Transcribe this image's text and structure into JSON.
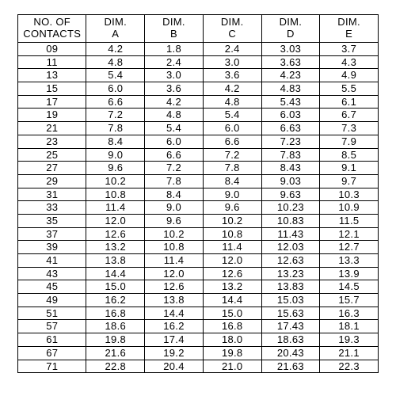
{
  "table": {
    "type": "table",
    "background_color": "#ffffff",
    "border_color": "#000000",
    "font_family": "Arial",
    "header_fontsize": 13,
    "cell_fontsize": 13,
    "columns": [
      {
        "key": "contacts",
        "line1": "NO. OF",
        "line2": "CONTACTS",
        "align": "center",
        "width_pct": 19
      },
      {
        "key": "dim_a",
        "line1": "DIM.",
        "line2": "A",
        "align": "center",
        "width_pct": 16.2
      },
      {
        "key": "dim_b",
        "line1": "DIM.",
        "line2": "B",
        "align": "center",
        "width_pct": 16.2
      },
      {
        "key": "dim_c",
        "line1": "DIM.",
        "line2": "C",
        "align": "center",
        "width_pct": 16.2
      },
      {
        "key": "dim_d",
        "line1": "DIM.",
        "line2": "D",
        "align": "center",
        "width_pct": 16.2
      },
      {
        "key": "dim_e",
        "line1": "DIM.",
        "line2": "E",
        "align": "center",
        "width_pct": 16.2
      }
    ],
    "rows": [
      [
        "09",
        "4.2",
        "1.8",
        "2.4",
        "3.03",
        "3.7"
      ],
      [
        "11",
        "4.8",
        "2.4",
        "3.0",
        "3.63",
        "4.3"
      ],
      [
        "13",
        "5.4",
        "3.0",
        "3.6",
        "4.23",
        "4.9"
      ],
      [
        "15",
        "6.0",
        "3.6",
        "4.2",
        "4.83",
        "5.5"
      ],
      [
        "17",
        "6.6",
        "4.2",
        "4.8",
        "5.43",
        "6.1"
      ],
      [
        "19",
        "7.2",
        "4.8",
        "5.4",
        "6.03",
        "6.7"
      ],
      [
        "21",
        "7.8",
        "5.4",
        "6.0",
        "6.63",
        "7.3"
      ],
      [
        "23",
        "8.4",
        "6.0",
        "6.6",
        "7.23",
        "7.9"
      ],
      [
        "25",
        "9.0",
        "6.6",
        "7.2",
        "7.83",
        "8.5"
      ],
      [
        "27",
        "9.6",
        "7.2",
        "7.8",
        "8.43",
        "9.1"
      ],
      [
        "29",
        "10.2",
        "7.8",
        "8.4",
        "9.03",
        "9.7"
      ],
      [
        "31",
        "10.8",
        "8.4",
        "9.0",
        "9.63",
        "10.3"
      ],
      [
        "33",
        "11.4",
        "9.0",
        "9.6",
        "10.23",
        "10.9"
      ],
      [
        "35",
        "12.0",
        "9.6",
        "10.2",
        "10.83",
        "11.5"
      ],
      [
        "37",
        "12.6",
        "10.2",
        "10.8",
        "11.43",
        "12.1"
      ],
      [
        "39",
        "13.2",
        "10.8",
        "11.4",
        "12.03",
        "12.7"
      ],
      [
        "41",
        "13.8",
        "11.4",
        "12.0",
        "12.63",
        "13.3"
      ],
      [
        "43",
        "14.4",
        "12.0",
        "12.6",
        "13.23",
        "13.9"
      ],
      [
        "45",
        "15.0",
        "12.6",
        "13.2",
        "13.83",
        "14.5"
      ],
      [
        "49",
        "16.2",
        "13.8",
        "14.4",
        "15.03",
        "15.7"
      ],
      [
        "51",
        "16.8",
        "14.4",
        "15.0",
        "15.63",
        "16.3"
      ],
      [
        "57",
        "18.6",
        "16.2",
        "16.8",
        "17.43",
        "18.1"
      ],
      [
        "61",
        "19.8",
        "17.4",
        "18.0",
        "18.63",
        "19.3"
      ],
      [
        "67",
        "21.6",
        "19.2",
        "19.8",
        "20.43",
        "21.1"
      ],
      [
        "71",
        "22.8",
        "20.4",
        "21.0",
        "21.63",
        "22.3"
      ]
    ]
  }
}
